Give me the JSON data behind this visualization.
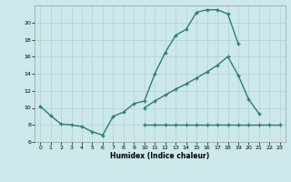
{
  "title": "",
  "xlabel": "Humidex (Indice chaleur)",
  "bg_color": "#cce8ea",
  "grid_color": "#b0d0d2",
  "line_color": "#2e7d6e",
  "xlim": [
    -0.5,
    23.5
  ],
  "ylim": [
    6,
    22
  ],
  "xticks": [
    0,
    1,
    2,
    3,
    4,
    5,
    6,
    7,
    8,
    9,
    10,
    11,
    12,
    13,
    14,
    15,
    16,
    17,
    18,
    19,
    20,
    21,
    22,
    23
  ],
  "yticks": [
    6,
    8,
    10,
    12,
    14,
    16,
    18,
    20
  ],
  "line1_x": [
    0,
    1,
    2,
    3,
    4,
    5,
    6,
    7,
    8,
    9,
    10,
    11,
    12,
    13,
    14,
    15,
    16,
    17,
    18,
    19
  ],
  "line1_y": [
    10.2,
    9.1,
    8.1,
    8.0,
    7.8,
    7.2,
    6.8,
    9.0,
    9.5,
    10.5,
    10.8,
    14.0,
    16.5,
    18.5,
    19.2,
    21.2,
    21.5,
    21.5,
    21.0,
    17.5
  ],
  "line2_x": [
    10,
    11,
    12,
    13,
    14,
    15,
    16,
    17,
    18,
    19,
    20,
    21
  ],
  "line2_y": [
    10.0,
    10.8,
    11.5,
    12.2,
    12.8,
    13.5,
    14.2,
    15.0,
    16.0,
    13.8,
    11.0,
    9.3
  ],
  "line3_x": [
    10,
    11,
    12,
    13,
    14,
    15,
    16,
    17,
    18,
    19,
    20,
    21,
    22,
    23
  ],
  "line3_y": [
    8.0,
    8.0,
    8.0,
    8.0,
    8.0,
    8.0,
    8.0,
    8.0,
    8.0,
    8.0,
    8.0,
    8.0,
    8.0,
    8.0
  ]
}
